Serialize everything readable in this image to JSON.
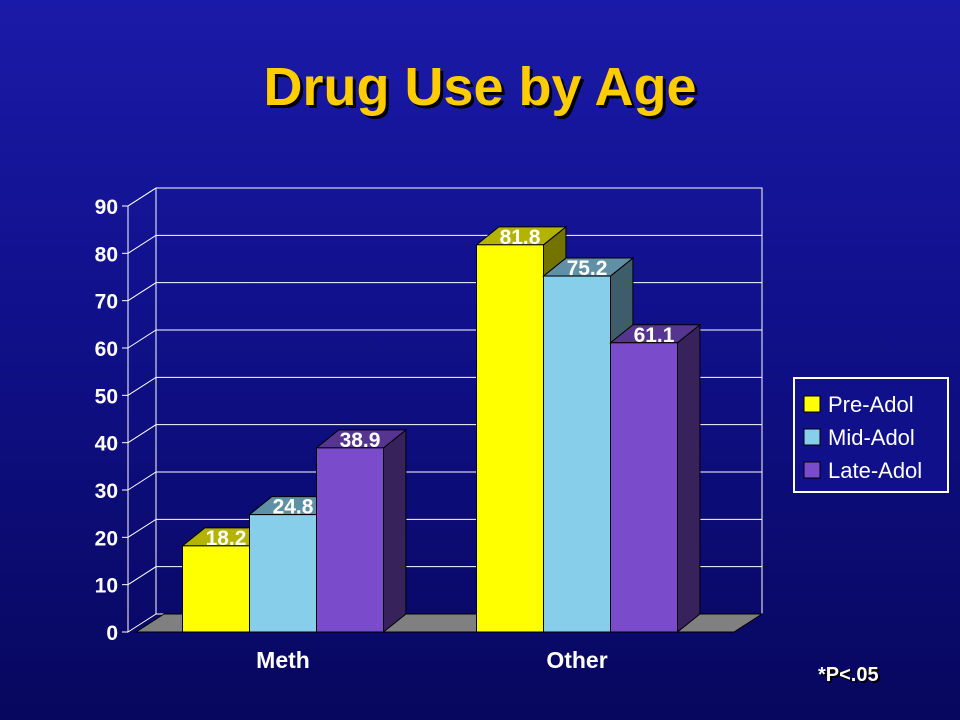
{
  "chart_data": {
    "type": "bar",
    "title": "Drug Use by Age",
    "categories": [
      "Meth",
      "Other"
    ],
    "series": [
      {
        "name": "Pre-Adol",
        "values": [
          18.2,
          81.8
        ],
        "color": "#ffff00"
      },
      {
        "name": "Mid-Adol",
        "values": [
          24.8,
          75.2
        ],
        "color": "#87ceeb"
      },
      {
        "name": "Late-Adol",
        "values": [
          38.9,
          61.1
        ],
        "color": "#7a4ccc"
      }
    ],
    "y_ticks": [
      "0",
      "10",
      "20",
      "30",
      "40",
      "50",
      "60",
      "70",
      "80",
      "90"
    ],
    "ylim": [
      0,
      90
    ],
    "grid": true,
    "legend_position": "right",
    "data_labels": true
  },
  "footnote": "*P<.05",
  "colors": {
    "background": "#10108a",
    "title": "#ffcc00",
    "floor": "#808080",
    "grid": "#ffffff"
  }
}
